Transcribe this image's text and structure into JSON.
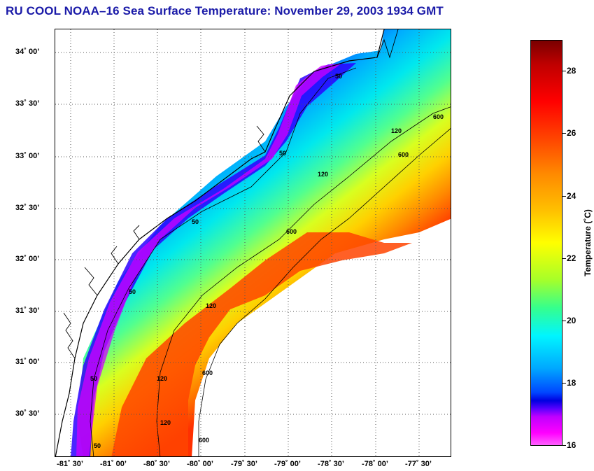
{
  "title": "RU COOL  NOAA–16  Sea Surface Temperature:  November 29, 2003 1934 GMT",
  "map": {
    "lat_labels": [
      "34˚ 00’",
      "33˚ 30’",
      "33˚ 00’",
      "32˚ 30’",
      "32˚ 00’",
      "31˚ 30’",
      "31˚ 00’",
      "30˚ 30’"
    ],
    "lon_labels": [
      "-81˚ 30’",
      "-81˚ 00’",
      "-80˚ 30’",
      "-80˚ 00’",
      "-79˚ 30’",
      "-79˚ 00’",
      "-78˚ 30’",
      "-78˚ 00’",
      "-77˚ 30’"
    ],
    "isobath_labels": [
      "50",
      "50",
      "50",
      "50",
      "50",
      "50",
      "120",
      "120",
      "120",
      "120",
      "120",
      "600",
      "600",
      "600",
      "600",
      "600"
    ]
  },
  "colorbar": {
    "title": "Temperature (˚C)",
    "ticks": [
      "28",
      "26",
      "24",
      "22",
      "20",
      "18",
      "16"
    ]
  },
  "colors": {
    "title": "#1a1aa8",
    "coast": "#000000"
  }
}
